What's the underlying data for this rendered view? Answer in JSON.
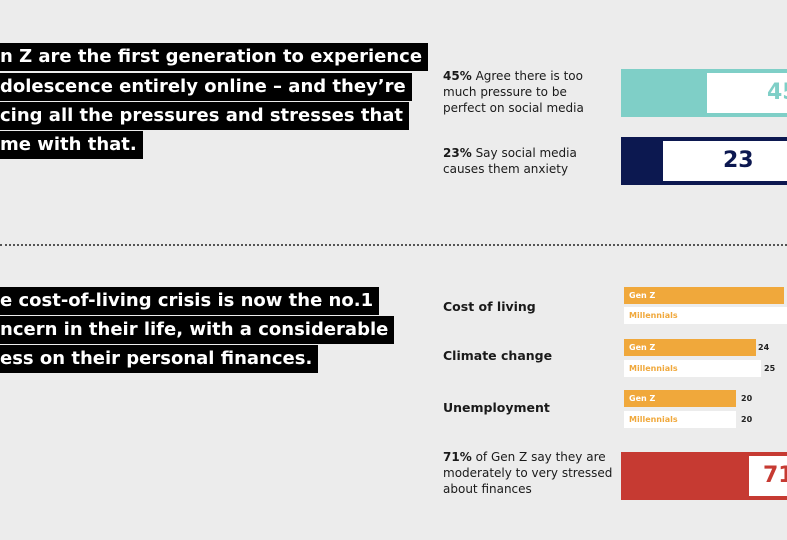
{
  "headline_1": {
    "lines": [
      "n Z are the first generation to experience",
      "dolescence entirely online – and they’re",
      "cing all the pressures and stresses that",
      "me with that."
    ]
  },
  "headline_2": {
    "lines": [
      "e cost-of-living crisis is now the no.1",
      "ncern in their life, with a considerable",
      "ess on their personal finances."
    ]
  },
  "stats": [
    {
      "percent": "45%",
      "text": "Agree there is too much pressure to be perfect on social media",
      "value": 45,
      "display": "45",
      "color": "#7fcfc7"
    },
    {
      "percent": "23%",
      "text": "Say social media causes them anxiety",
      "value": 23,
      "display": "23",
      "color": "#0c1850"
    }
  ],
  "concerns": {
    "series_labels": {
      "genz": "Gen Z",
      "mill": "Millennials"
    },
    "items": [
      {
        "label": "Cost of living",
        "genz": null,
        "mill": null,
        "genz_frac": 0.98,
        "mill_frac": 1.0
      },
      {
        "label": "Climate change",
        "genz": "24",
        "mill": "25",
        "genz_frac": 0.81,
        "mill_frac": 0.84
      },
      {
        "label": "Unemployment",
        "genz": "20",
        "mill": "20",
        "genz_frac": 0.69,
        "mill_frac": 0.69
      }
    ]
  },
  "finance_stat": {
    "percent": "71%",
    "text": "of Gen Z say they are moderately to very stressed about finances",
    "value": 71,
    "display": "71",
    "color": "#c63a32"
  }
}
